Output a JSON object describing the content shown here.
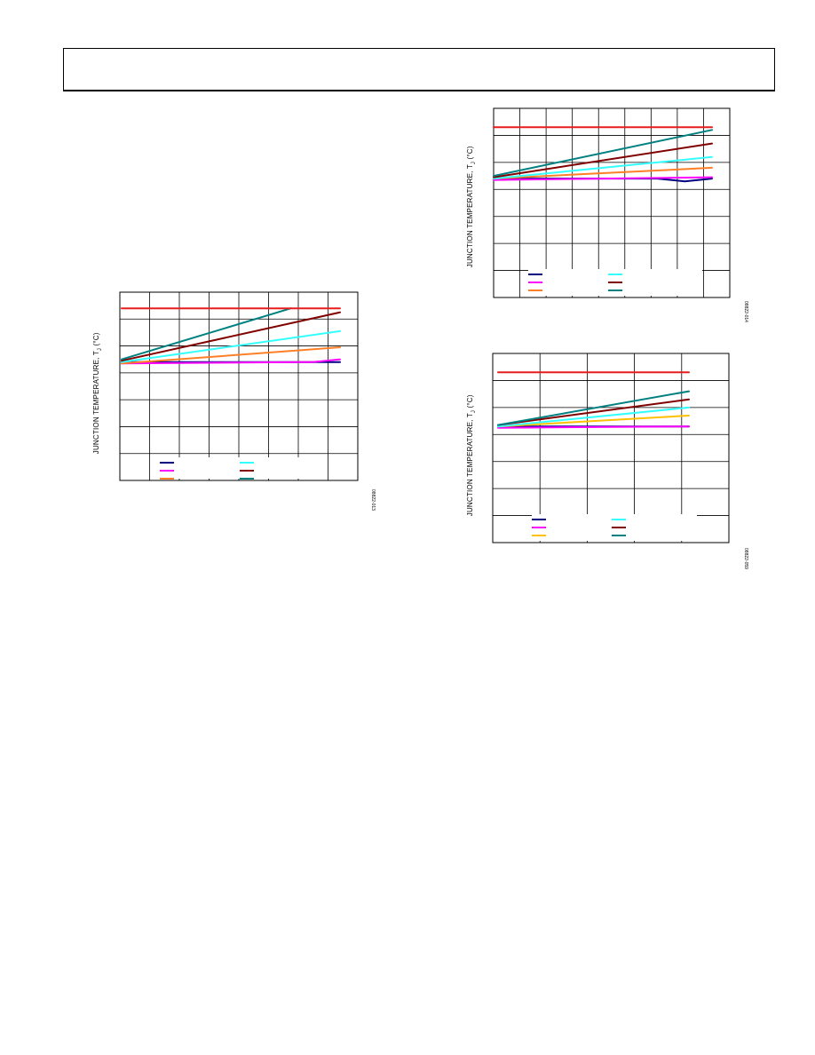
{
  "header": {},
  "chart_data": [
    {
      "type": "line",
      "ylabel": "JUNCTION TEMPERATURE, T",
      "ylabel_sub": "J",
      "ylabel_unit": " (°C)",
      "figure_id": "08822-013",
      "grid": true,
      "xlim": [
        0,
        8
      ],
      "ylim": [
        0,
        7
      ],
      "series": [
        {
          "color": "#000080",
          "x": [
            0,
            8
          ],
          "y": [
            4.4,
            4.4
          ]
        },
        {
          "color": "#ff00ff",
          "x": [
            0,
            6.5,
            7,
            8
          ],
          "y": [
            4.35,
            4.4,
            4.4,
            4.5
          ]
        },
        {
          "color": "#ff7f27",
          "x": [
            0,
            8
          ],
          "y": [
            4.35,
            4.95
          ]
        },
        {
          "color": "#33ffff",
          "x": [
            0,
            8
          ],
          "y": [
            4.4,
            5.55
          ]
        },
        {
          "color": "#800000",
          "x": [
            0,
            8
          ],
          "y": [
            4.45,
            6.25
          ]
        },
        {
          "color": "#008080",
          "x": [
            0,
            6.2
          ],
          "y": [
            4.5,
            6.4
          ]
        },
        {
          "color": "#e81e1e",
          "x": [
            0,
            8
          ],
          "y": [
            6.4,
            6.4
          ]
        }
      ]
    },
    {
      "type": "line",
      "ylabel": "JUNCTION TEMPERATURE, T",
      "ylabel_sub": "J",
      "ylabel_unit": " (°C)",
      "figure_id": "08822-014",
      "grid": true,
      "xlim": [
        0,
        8.5
      ],
      "ylim": [
        0,
        7
      ],
      "series": [
        {
          "color": "#000080",
          "x": [
            0,
            6,
            7,
            8
          ],
          "y": [
            4.4,
            4.4,
            4.3,
            4.4
          ]
        },
        {
          "color": "#ff00ff",
          "x": [
            0,
            8
          ],
          "y": [
            4.35,
            4.45
          ]
        },
        {
          "color": "#ff7f27",
          "x": [
            0,
            8
          ],
          "y": [
            4.4,
            4.8
          ]
        },
        {
          "color": "#33ffff",
          "x": [
            0,
            8
          ],
          "y": [
            4.4,
            5.2
          ]
        },
        {
          "color": "#800000",
          "x": [
            0,
            8
          ],
          "y": [
            4.45,
            5.7
          ]
        },
        {
          "color": "#008080",
          "x": [
            0,
            8
          ],
          "y": [
            4.5,
            6.2
          ]
        },
        {
          "color": "#e81e1e",
          "x": [
            0,
            8
          ],
          "y": [
            6.3,
            6.3
          ]
        }
      ]
    },
    {
      "type": "line",
      "ylabel": "JUNCTION TEMPERATURE, T",
      "ylabel_sub": "J",
      "ylabel_unit": " (°C)",
      "figure_id": "08822-059",
      "grid": true,
      "xlim": [
        0,
        4.5
      ],
      "ylim": [
        0,
        7
      ],
      "series": [
        {
          "color": "#000080",
          "x": [
            0,
            4
          ],
          "y": [
            4.3,
            4.3
          ]
        },
        {
          "color": "#ff00ff",
          "x": [
            0,
            4
          ],
          "y": [
            4.25,
            4.3
          ]
        },
        {
          "color": "#ffc000",
          "x": [
            0,
            4
          ],
          "y": [
            4.3,
            4.7
          ]
        },
        {
          "color": "#33ffff",
          "x": [
            0,
            4
          ],
          "y": [
            4.3,
            5.0
          ]
        },
        {
          "color": "#800000",
          "x": [
            0,
            4
          ],
          "y": [
            4.35,
            5.3
          ]
        },
        {
          "color": "#008080",
          "x": [
            0,
            4
          ],
          "y": [
            4.35,
            5.6
          ]
        },
        {
          "color": "#e81e1e",
          "x": [
            0,
            4
          ],
          "y": [
            6.3,
            6.3
          ]
        }
      ]
    }
  ]
}
